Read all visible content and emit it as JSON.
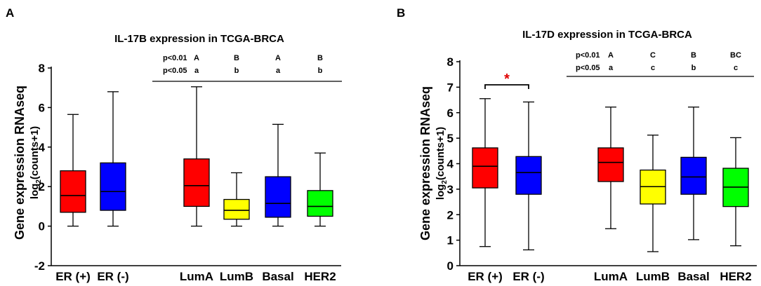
{
  "chart_data": [
    {
      "panel_label": "A",
      "type": "box",
      "title": "IL-17B expression in TCGA-BRCA",
      "ylabel_line1": "Gene expression RNAseq",
      "ylabel_line2_main": "log",
      "ylabel_line2_sub": "2",
      "ylabel_line2_tail": "(counts+1)",
      "ylim": [
        -2,
        8
      ],
      "yticks": [
        -2,
        0,
        2,
        4,
        6,
        8
      ],
      "categories": [
        "ER (+)",
        "ER (-)",
        "LumA",
        "LumB",
        "Basal",
        "HER2"
      ],
      "boxes": [
        {
          "name": "ER (+)",
          "min": 0,
          "q1": 0.7,
          "median": 1.55,
          "q3": 2.8,
          "max": 5.65,
          "color": "#ff0000"
        },
        {
          "name": "ER (-)",
          "min": 0,
          "q1": 0.8,
          "median": 1.75,
          "q3": 3.2,
          "max": 6.8,
          "color": "#0000ff"
        },
        {
          "name": "LumA",
          "min": 0,
          "q1": 1.0,
          "median": 2.05,
          "q3": 3.4,
          "max": 7.05,
          "color": "#ff0000"
        },
        {
          "name": "LumB",
          "min": 0,
          "q1": 0.35,
          "median": 0.8,
          "q3": 1.35,
          "max": 2.7,
          "color": "#ffff00"
        },
        {
          "name": "Basal",
          "min": 0,
          "q1": 0.45,
          "median": 1.15,
          "q3": 2.5,
          "max": 5.15,
          "color": "#0000ff"
        },
        {
          "name": "HER2",
          "min": 0,
          "q1": 0.5,
          "median": 1.0,
          "q3": 1.8,
          "max": 3.7,
          "color": "#00ff00"
        }
      ],
      "significance": {
        "rows": [
          {
            "label": "p<0.01",
            "groups": [
              "A",
              "B",
              "A",
              "B"
            ]
          },
          {
            "label": "p<0.05",
            "groups": [
              "a",
              "b",
              "a",
              "b"
            ]
          }
        ]
      }
    },
    {
      "panel_label": "B",
      "type": "box",
      "title": "IL-17D expression in TCGA-BRCA",
      "ylabel_line1": "Gene expression RNAseq",
      "ylabel_line2_main": "log",
      "ylabel_line2_sub": "2",
      "ylabel_line2_tail": "(counts+1)",
      "ylim": [
        0,
        8
      ],
      "yticks": [
        0,
        1,
        2,
        3,
        4,
        5,
        6,
        7,
        8
      ],
      "categories": [
        "ER (+)",
        "ER (-)",
        "LumA",
        "LumB",
        "Basal",
        "HER2"
      ],
      "boxes": [
        {
          "name": "ER (+)",
          "min": 0.75,
          "q1": 3.05,
          "median": 3.9,
          "q3": 4.62,
          "max": 6.55,
          "color": "#ff0000"
        },
        {
          "name": "ER (-)",
          "min": 0.62,
          "q1": 2.8,
          "median": 3.65,
          "q3": 4.28,
          "max": 6.42,
          "color": "#0000ff"
        },
        {
          "name": "LumA",
          "min": 1.45,
          "q1": 3.3,
          "median": 4.05,
          "q3": 4.62,
          "max": 6.22,
          "color": "#ff0000"
        },
        {
          "name": "LumB",
          "min": 0.55,
          "q1": 2.42,
          "median": 3.1,
          "q3": 3.75,
          "max": 5.12,
          "color": "#ffff00"
        },
        {
          "name": "Basal",
          "min": 1.02,
          "q1": 2.8,
          "median": 3.48,
          "q3": 4.25,
          "max": 6.22,
          "color": "#0000ff"
        },
        {
          "name": "HER2",
          "min": 0.78,
          "q1": 2.32,
          "median": 3.08,
          "q3": 3.82,
          "max": 5.02,
          "color": "#00ff00"
        }
      ],
      "bracket": {
        "from": "ER (+)",
        "to": "ER (-)",
        "label": "*"
      },
      "significance": {
        "rows": [
          {
            "label": "p<0.01",
            "groups": [
              "A",
              "C",
              "B",
              "BC"
            ]
          },
          {
            "label": "p<0.05",
            "groups": [
              "a",
              "c",
              "b",
              "c"
            ]
          }
        ]
      }
    }
  ]
}
